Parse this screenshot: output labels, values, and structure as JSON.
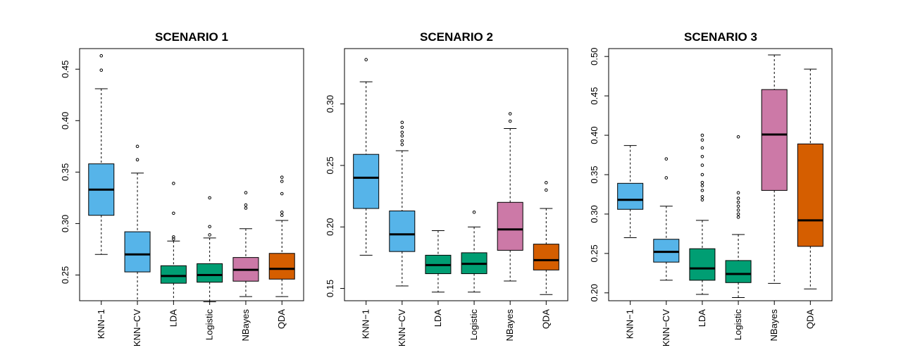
{
  "colors": {
    "knn": "#56B4E9",
    "lda_logistic": "#009E73",
    "nbayes": "#CC79A7",
    "qda": "#D55E00"
  },
  "chart_data": [
    {
      "type": "box",
      "title": "SCENARIO 1",
      "ylim": [
        0.225,
        0.47
      ],
      "yticks": [
        0.25,
        0.3,
        0.35,
        0.4,
        0.45
      ],
      "ytick_labels": [
        "0.25",
        "0.30",
        "0.35",
        "0.40",
        "0.45"
      ],
      "categories": [
        "KNN−1",
        "KNN−CV",
        "LDA",
        "Logistic",
        "NBayes",
        "QDA"
      ],
      "boxes": [
        {
          "min": 0.27,
          "q1": 0.308,
          "median": 0.333,
          "q3": 0.358,
          "max": 0.431,
          "outliers": [
            0.449,
            0.463
          ],
          "color": "#56B4E9"
        },
        {
          "min": 0.225,
          "q1": 0.253,
          "median": 0.27,
          "q3": 0.292,
          "max": 0.349,
          "outliers": [
            0.362,
            0.375
          ],
          "color": "#56B4E9"
        },
        {
          "min": 0.225,
          "q1": 0.242,
          "median": 0.249,
          "q3": 0.259,
          "max": 0.283,
          "outliers": [
            0.285,
            0.287,
            0.31,
            0.339
          ],
          "color": "#009E73"
        },
        {
          "min": 0.224,
          "q1": 0.243,
          "median": 0.25,
          "q3": 0.261,
          "max": 0.286,
          "outliers": [
            0.289,
            0.297,
            0.325
          ],
          "color": "#009E73"
        },
        {
          "min": 0.229,
          "q1": 0.244,
          "median": 0.255,
          "q3": 0.267,
          "max": 0.295,
          "outliers": [
            0.315,
            0.318,
            0.33
          ],
          "color": "#CC79A7"
        },
        {
          "min": 0.229,
          "q1": 0.246,
          "median": 0.256,
          "q3": 0.271,
          "max": 0.303,
          "outliers": [
            0.308,
            0.311,
            0.329,
            0.341,
            0.345
          ],
          "color": "#D55E00"
        }
      ]
    },
    {
      "type": "box",
      "title": "SCENARIO 2",
      "ylim": [
        0.14,
        0.345
      ],
      "yticks": [
        0.15,
        0.2,
        0.25,
        0.3
      ],
      "ytick_labels": [
        "0.15",
        "0.20",
        "0.25",
        "0.30"
      ],
      "categories": [
        "KNN−1",
        "KNN−CV",
        "LDA",
        "Logistic",
        "NBayes",
        "QDA"
      ],
      "boxes": [
        {
          "min": 0.177,
          "q1": 0.215,
          "median": 0.24,
          "q3": 0.259,
          "max": 0.318,
          "outliers": [
            0.336
          ],
          "color": "#56B4E9"
        },
        {
          "min": 0.152,
          "q1": 0.18,
          "median": 0.194,
          "q3": 0.213,
          "max": 0.262,
          "outliers": [
            0.267,
            0.27,
            0.274,
            0.277,
            0.281,
            0.285
          ],
          "color": "#56B4E9"
        },
        {
          "min": 0.147,
          "q1": 0.162,
          "median": 0.169,
          "q3": 0.177,
          "max": 0.197,
          "outliers": [],
          "color": "#009E73"
        },
        {
          "min": 0.147,
          "q1": 0.162,
          "median": 0.17,
          "q3": 0.179,
          "max": 0.2,
          "outliers": [
            0.212
          ],
          "color": "#009E73"
        },
        {
          "min": 0.156,
          "q1": 0.181,
          "median": 0.198,
          "q3": 0.22,
          "max": 0.28,
          "outliers": [
            0.286,
            0.292
          ],
          "color": "#CC79A7"
        },
        {
          "min": 0.145,
          "q1": 0.165,
          "median": 0.173,
          "q3": 0.186,
          "max": 0.215,
          "outliers": [
            0.23,
            0.236
          ],
          "color": "#D55E00"
        }
      ]
    },
    {
      "type": "box",
      "title": "SCENARIO 3",
      "ylim": [
        0.19,
        0.51
      ],
      "yticks": [
        0.2,
        0.25,
        0.3,
        0.35,
        0.4,
        0.45,
        0.5
      ],
      "ytick_labels": [
        "0.20",
        "0.25",
        "0.30",
        "0.35",
        "0.40",
        "0.45",
        "0.50"
      ],
      "categories": [
        "KNN−1",
        "KNN−CV",
        "LDA",
        "Logistic",
        "NBayes",
        "QDA"
      ],
      "boxes": [
        {
          "min": 0.27,
          "q1": 0.306,
          "median": 0.318,
          "q3": 0.339,
          "max": 0.387,
          "outliers": [],
          "color": "#56B4E9"
        },
        {
          "min": 0.216,
          "q1": 0.239,
          "median": 0.252,
          "q3": 0.268,
          "max": 0.31,
          "outliers": [
            0.346,
            0.37
          ],
          "color": "#56B4E9"
        },
        {
          "min": 0.198,
          "q1": 0.216,
          "median": 0.231,
          "q3": 0.256,
          "max": 0.292,
          "outliers": [
            0.318,
            0.322,
            0.33,
            0.336,
            0.34,
            0.35,
            0.362,
            0.373,
            0.384,
            0.394,
            0.4
          ],
          "color": "#009E73"
        },
        {
          "min": 0.194,
          "q1": 0.213,
          "median": 0.224,
          "q3": 0.241,
          "max": 0.274,
          "outliers": [
            0.296,
            0.3,
            0.305,
            0.31,
            0.315,
            0.32,
            0.327,
            0.398
          ],
          "color": "#009E73"
        },
        {
          "min": 0.212,
          "q1": 0.33,
          "median": 0.401,
          "q3": 0.458,
          "max": 0.502,
          "outliers": [],
          "color": "#CC79A7"
        },
        {
          "min": 0.205,
          "q1": 0.259,
          "median": 0.292,
          "q3": 0.389,
          "max": 0.484,
          "outliers": [],
          "color": "#D55E00"
        }
      ]
    }
  ]
}
